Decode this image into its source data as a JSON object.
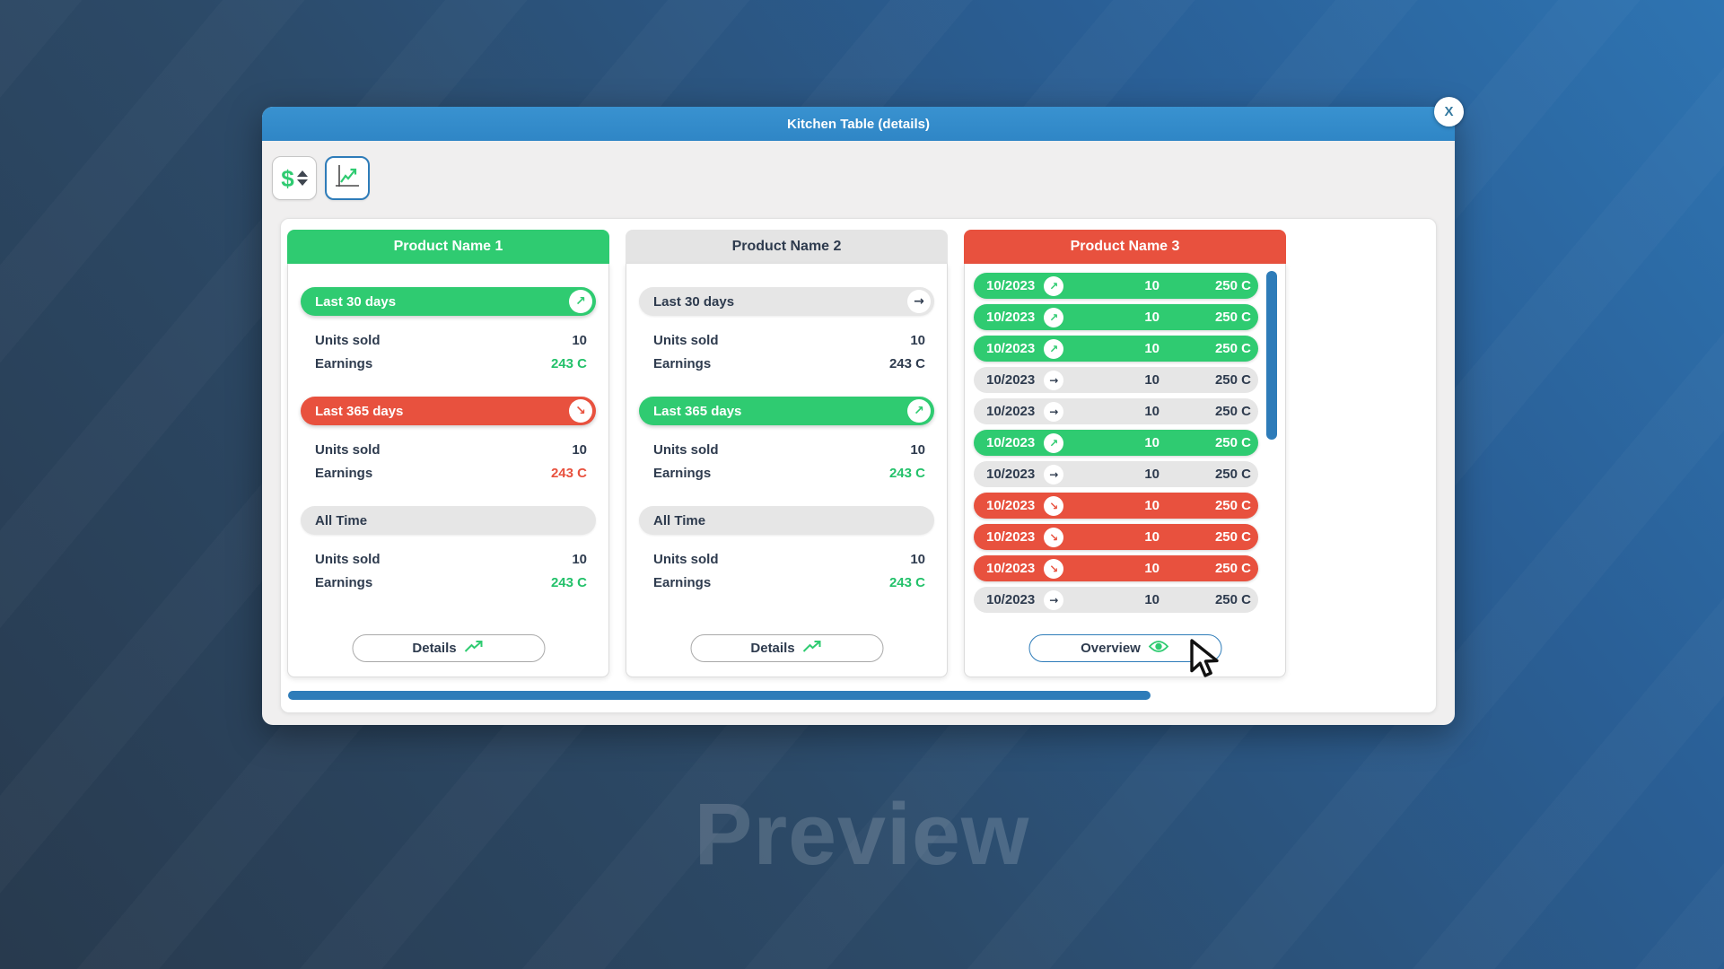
{
  "window": {
    "title": "Kitchen Table (details)",
    "close_label": "X"
  },
  "toolbar": {
    "dollar_label": "$",
    "buttons": [
      {
        "name": "currency-sort",
        "active": false
      },
      {
        "name": "trend-chart",
        "active": true
      }
    ]
  },
  "icons": {
    "up": "↗",
    "flat": "→",
    "down": "↘"
  },
  "colors": {
    "green": "#2fcb71",
    "red": "#e8513e",
    "titlebar_blue": "#2f86c6",
    "scrollbar_blue": "#2e7cb9",
    "dark_text": "#2e3b4e",
    "gray_pill": "#e6e6e6"
  },
  "products": [
    {
      "name": "Product Name 1",
      "header": "green",
      "type": "summary",
      "sections": [
        {
          "label": "Last 30 days",
          "variant": "green",
          "trend": "up",
          "rows": [
            {
              "label": "Units sold",
              "value": "10",
              "color": "default"
            },
            {
              "label": "Earnings",
              "value": "243 C",
              "color": "green"
            }
          ]
        },
        {
          "label": "Last 365 days",
          "variant": "red",
          "trend": "down",
          "rows": [
            {
              "label": "Units sold",
              "value": "10",
              "color": "default"
            },
            {
              "label": "Earnings",
              "value": "243 C",
              "color": "red"
            }
          ]
        },
        {
          "label": "All Time",
          "variant": "gray",
          "trend": null,
          "rows": [
            {
              "label": "Units sold",
              "value": "10",
              "color": "default"
            },
            {
              "label": "Earnings",
              "value": "243 C",
              "color": "green"
            }
          ]
        }
      ],
      "action": {
        "label": "Details",
        "icon": "trend-up-icon",
        "style": "gray"
      }
    },
    {
      "name": "Product Name 2",
      "header": "gray",
      "type": "summary",
      "sections": [
        {
          "label": "Last 30 days",
          "variant": "gray",
          "trend": "flat",
          "rows": [
            {
              "label": "Units sold",
              "value": "10",
              "color": "default"
            },
            {
              "label": "Earnings",
              "value": "243 C",
              "color": "default"
            }
          ]
        },
        {
          "label": "Last 365 days",
          "variant": "green",
          "trend": "up",
          "rows": [
            {
              "label": "Units sold",
              "value": "10",
              "color": "default"
            },
            {
              "label": "Earnings",
              "value": "243 C",
              "color": "green"
            }
          ]
        },
        {
          "label": "All Time",
          "variant": "gray",
          "trend": null,
          "rows": [
            {
              "label": "Units sold",
              "value": "10",
              "color": "default"
            },
            {
              "label": "Earnings",
              "value": "243 C",
              "color": "green"
            }
          ]
        }
      ],
      "action": {
        "label": "Details",
        "icon": "trend-up-icon",
        "style": "gray"
      }
    },
    {
      "name": "Product Name 3",
      "header": "red",
      "type": "monthly",
      "rows": [
        {
          "date": "10/2023",
          "trend": "up",
          "variant": "green",
          "units": "10",
          "earnings": "250 C"
        },
        {
          "date": "10/2023",
          "trend": "up",
          "variant": "green",
          "units": "10",
          "earnings": "250 C"
        },
        {
          "date": "10/2023",
          "trend": "up",
          "variant": "green",
          "units": "10",
          "earnings": "250 C"
        },
        {
          "date": "10/2023",
          "trend": "flat",
          "variant": "gray",
          "units": "10",
          "earnings": "250 C"
        },
        {
          "date": "10/2023",
          "trend": "flat",
          "variant": "gray",
          "units": "10",
          "earnings": "250 C"
        },
        {
          "date": "10/2023",
          "trend": "up",
          "variant": "green",
          "units": "10",
          "earnings": "250 C"
        },
        {
          "date": "10/2023",
          "trend": "flat",
          "variant": "gray",
          "units": "10",
          "earnings": "250 C"
        },
        {
          "date": "10/2023",
          "trend": "down",
          "variant": "red",
          "units": "10",
          "earnings": "250 C"
        },
        {
          "date": "10/2023",
          "trend": "down",
          "variant": "red",
          "units": "10",
          "earnings": "250 C"
        },
        {
          "date": "10/2023",
          "trend": "down",
          "variant": "red",
          "units": "10",
          "earnings": "250 C"
        },
        {
          "date": "10/2023",
          "trend": "flat",
          "variant": "gray",
          "units": "10",
          "earnings": "250 C"
        }
      ],
      "action": {
        "label": "Overview",
        "icon": "eye-icon",
        "style": "blue"
      }
    }
  ],
  "watermark": "Preview"
}
